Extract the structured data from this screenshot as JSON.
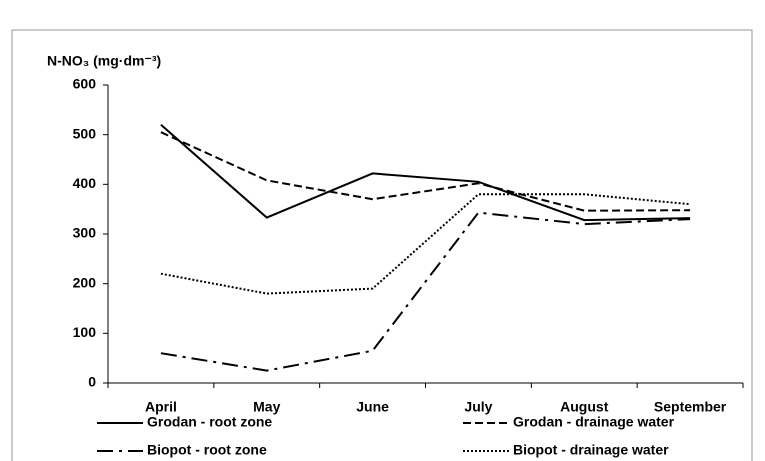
{
  "chart_data": {
    "type": "line",
    "y_label": "N-NO₃ (mg·dm⁻³)",
    "categories": [
      "April",
      "May",
      "June",
      "July",
      "August",
      "September"
    ],
    "ylim": [
      0,
      600
    ],
    "yticks": [
      0,
      100,
      200,
      300,
      400,
      500,
      600
    ],
    "series": [
      {
        "name": "Grodan - root zone",
        "color": "#000000",
        "dash": "none",
        "values": [
          520,
          333,
          422,
          405,
          328,
          332
        ]
      },
      {
        "name": "Grodan - drainage water",
        "color": "#000000",
        "dash": "8,4",
        "values": [
          505,
          408,
          370,
          402,
          347,
          348
        ]
      },
      {
        "name": "Biopot - root zone",
        "color": "#000000",
        "dash": "16,6,3,6",
        "values": [
          60,
          25,
          65,
          343,
          320,
          330
        ]
      },
      {
        "name": "Biopot - drainage water",
        "color": "#000000",
        "dash": "2,2",
        "values": [
          220,
          180,
          190,
          380,
          380,
          360
        ]
      }
    ]
  }
}
